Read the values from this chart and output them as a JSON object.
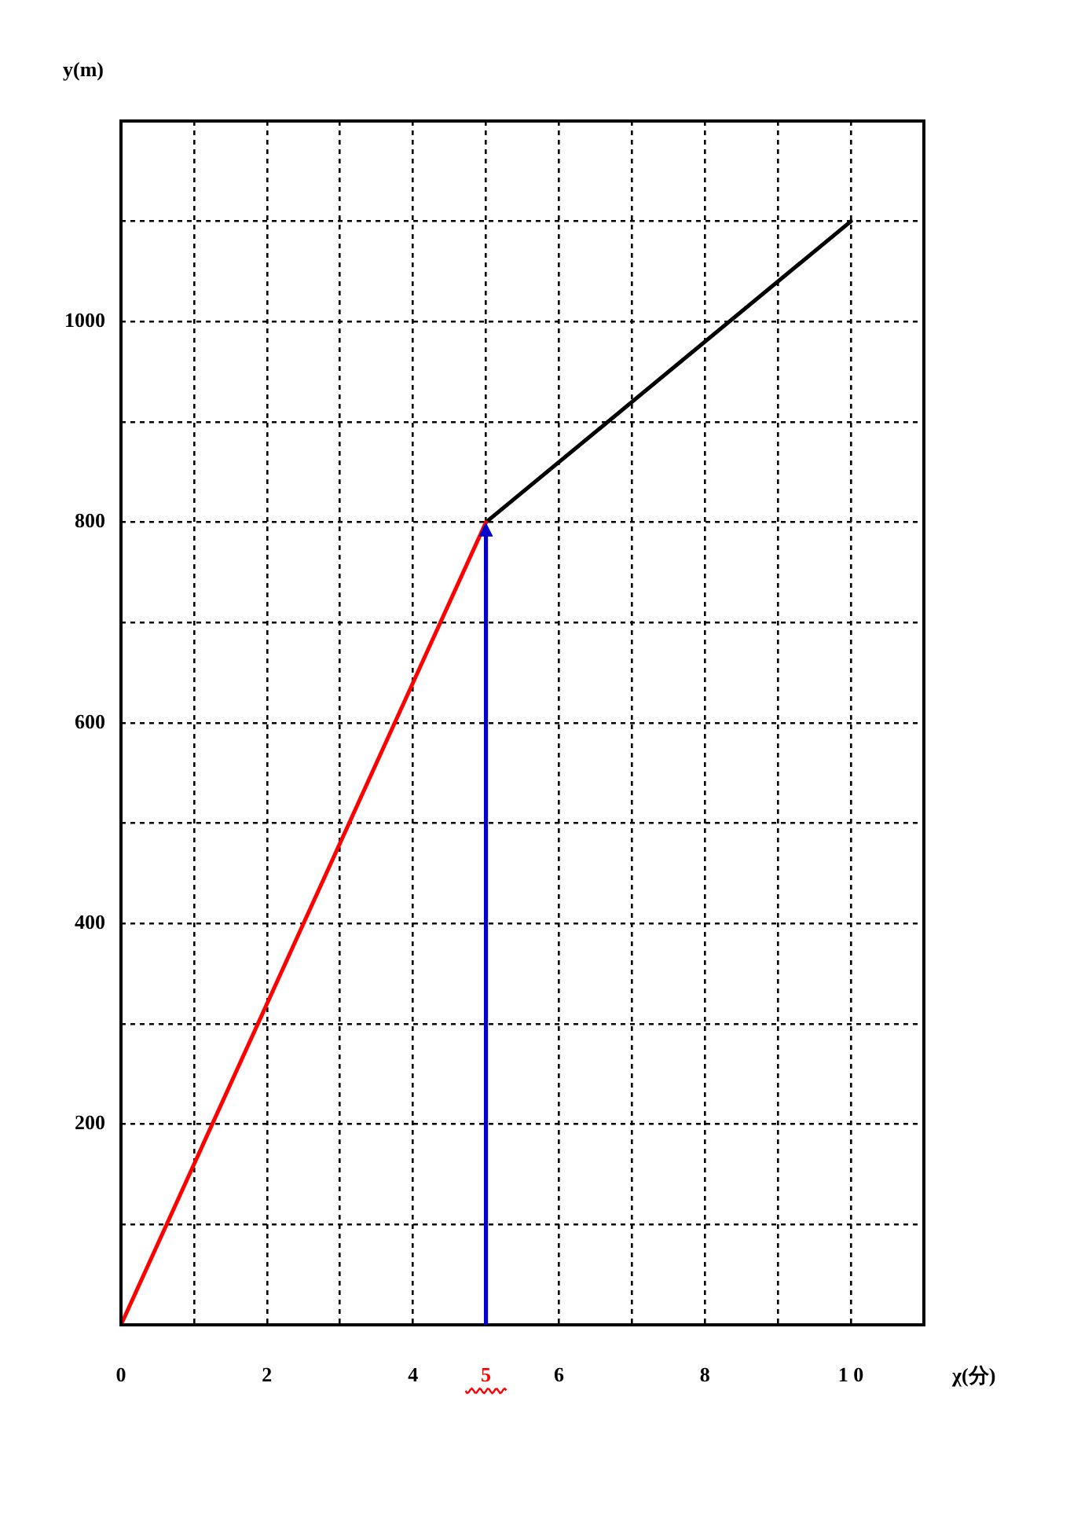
{
  "chart_data": {
    "type": "line",
    "xlabel": "χ(分)",
    "ylabel": "y(m)",
    "xlim": [
      0,
      11
    ],
    "ylim": [
      0,
      1200
    ],
    "xticks": [
      0,
      {
        "value": 1,
        "label": null
      },
      2,
      {
        "value": 3,
        "label": null
      },
      4,
      5,
      6,
      {
        "value": 7,
        "label": null
      },
      8,
      {
        "value": 9,
        "label": null
      },
      {
        "value": 10,
        "label": "1 0"
      }
    ],
    "yticks": [
      {
        "value": 100,
        "label": null
      },
      200,
      {
        "value": 300,
        "label": null
      },
      400,
      {
        "value": 500,
        "label": null
      },
      600,
      {
        "value": 700,
        "label": null
      },
      800,
      {
        "value": 900,
        "label": null
      },
      1000,
      {
        "value": 1100,
        "label": null
      }
    ],
    "series": [
      {
        "color": "#ff0000",
        "x": [
          0,
          5
        ],
        "values": [
          0,
          800
        ]
      },
      {
        "color": "#000000",
        "x": [
          5,
          10
        ],
        "values": [
          800,
          1100
        ]
      }
    ],
    "grid": true,
    "legend": false,
    "marker": "none",
    "line_style": "solid"
  }
}
